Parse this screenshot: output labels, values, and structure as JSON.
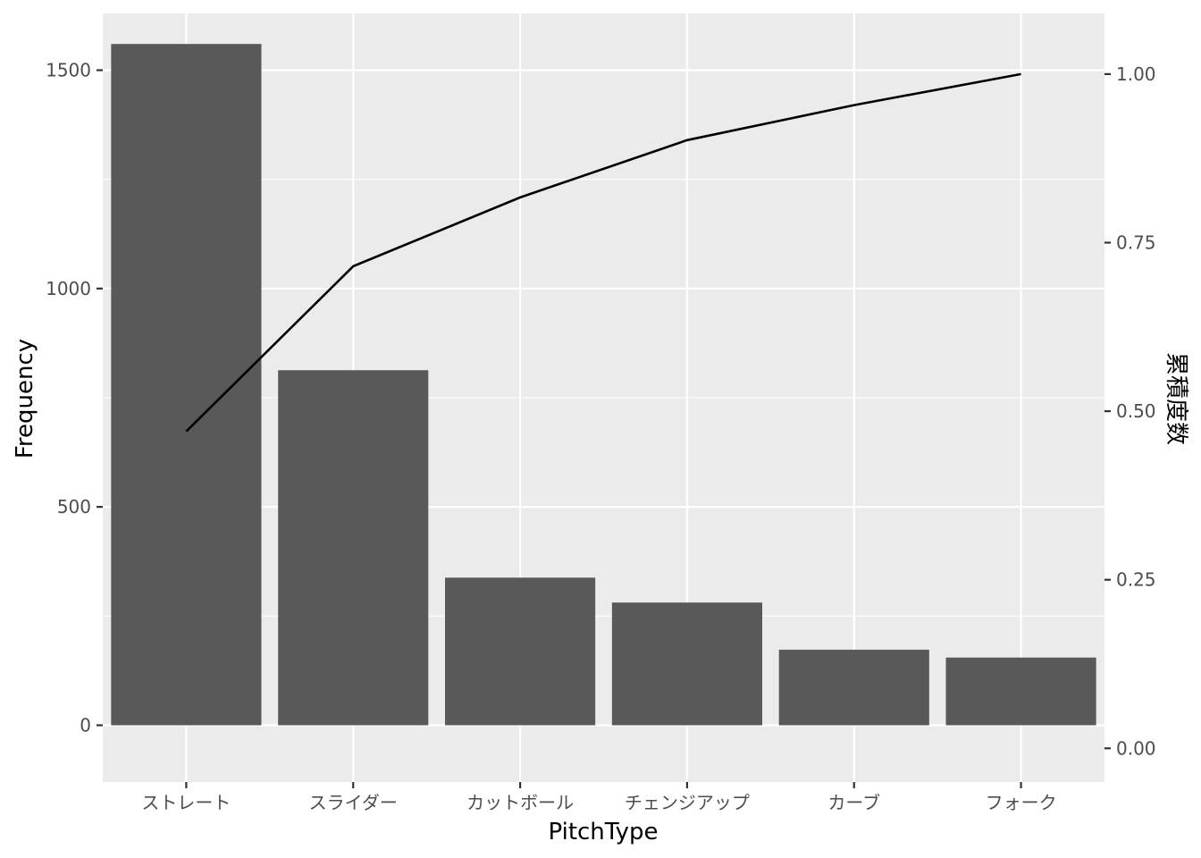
{
  "chart_data": {
    "type": "bar",
    "title": "",
    "xlabel": "PitchType",
    "ylabel": "Frequency",
    "y2label": "累積度数",
    "categories": [
      "ストレート",
      "スライダー",
      "カットボール",
      "チェンジアップ",
      "カーブ",
      "フォーク"
    ],
    "values": [
      1560,
      813,
      338,
      281,
      173,
      155
    ],
    "line": {
      "axis": "secondary",
      "values": [
        0.47,
        0.715,
        0.817,
        0.902,
        0.954,
        1.0
      ]
    },
    "ylim": [
      -130,
      1630
    ],
    "y2lim": [
      -0.05,
      1.09
    ],
    "yticks": [
      0,
      500,
      1000,
      1500
    ],
    "ytick_labels": [
      "0",
      "500",
      "1000",
      "1500"
    ],
    "y2ticks": [
      0.0,
      0.25,
      0.5,
      0.75,
      1.0
    ],
    "y2tick_labels": [
      "0.00",
      "0.25",
      "0.50",
      "0.75",
      "1.00"
    ],
    "grid": true,
    "legend": "none",
    "colors": {
      "panel": "#ebebeb",
      "grid": "#ffffff",
      "bar": "#595959",
      "line": "#000000",
      "tick": "#333333"
    }
  }
}
